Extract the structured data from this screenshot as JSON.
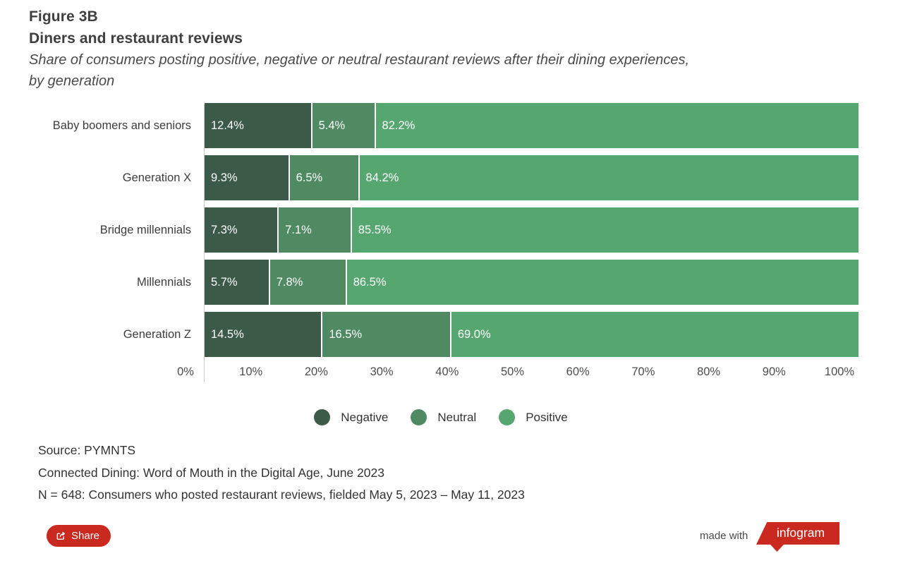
{
  "header": {
    "figure_label": "Figure 3B",
    "title": "Diners and restaurant reviews",
    "subtitle_line1": "Share of consumers posting positive, negative or neutral restaurant reviews after their dining experiences,",
    "subtitle_line2": "by generation"
  },
  "chart_data": {
    "type": "bar",
    "orientation": "horizontal",
    "stacked": true,
    "grid": false,
    "legend_position": "bottom",
    "categories": [
      "Baby boomers and seniors",
      "Generation X",
      "Bridge millennials",
      "Millennials",
      "Generation Z"
    ],
    "series": [
      {
        "name": "Negative",
        "color": "#3c5a48",
        "values": [
          12.4,
          9.3,
          7.3,
          5.7,
          14.5
        ]
      },
      {
        "name": "Neutral",
        "color": "#4f8a62",
        "values": [
          5.4,
          6.5,
          7.1,
          7.8,
          16.5
        ]
      },
      {
        "name": "Positive",
        "color": "#56a76f",
        "values": [
          82.2,
          84.2,
          85.5,
          86.5,
          69.0
        ]
      }
    ],
    "xlim": [
      0,
      100
    ],
    "x_ticks": [
      "0%",
      "10%",
      "20%",
      "30%",
      "40%",
      "50%",
      "60%",
      "70%",
      "80%",
      "90%",
      "100%"
    ],
    "value_label_suffix": "%"
  },
  "source": {
    "line1": "Source: PYMNTS",
    "line2": "Connected Dining: Word of Mouth in the Digital Age, June 2023",
    "line3": "N = 648: Consumers who posted restaurant reviews, fielded May 5, 2023 – May 11, 2023"
  },
  "footer": {
    "share_label": "Share",
    "made_with_label": "made with",
    "logo_text": "infogram",
    "accent_red": "#c9291e"
  }
}
